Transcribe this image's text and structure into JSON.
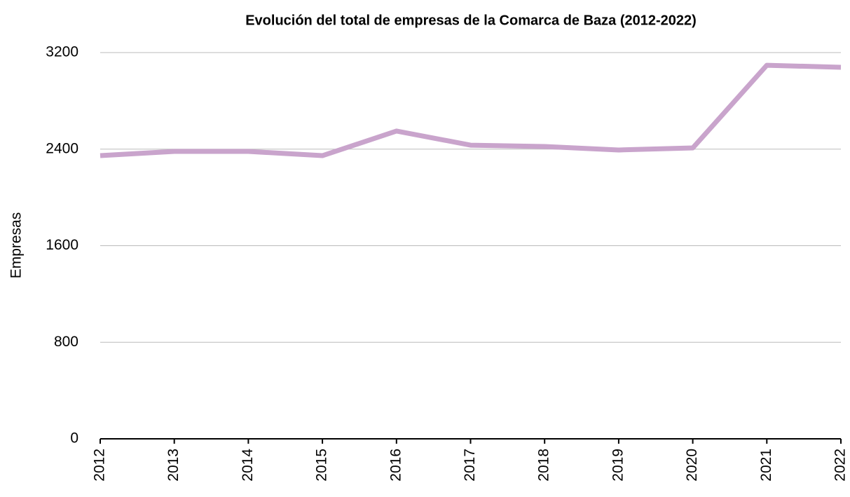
{
  "chart_data": {
    "type": "line",
    "title": "Evolución del total de empresas de la Comarca de Baza (2012-2022)",
    "y_label": "Empresas",
    "categories": [
      "2012",
      "2013",
      "2014",
      "2015",
      "2016",
      "2017",
      "2018",
      "2019",
      "2020",
      "2021",
      "2022"
    ],
    "series": [
      {
        "name": "Empresas",
        "color": "#c9a4cc",
        "values": [
          2346,
          2381,
          2381,
          2346,
          2550,
          2433,
          2422,
          2393,
          2410,
          3095,
          3078
        ]
      }
    ],
    "ylim": [
      0,
      3200
    ],
    "yticks": [
      0,
      800,
      1600,
      2400,
      3200
    ],
    "grid": true
  }
}
